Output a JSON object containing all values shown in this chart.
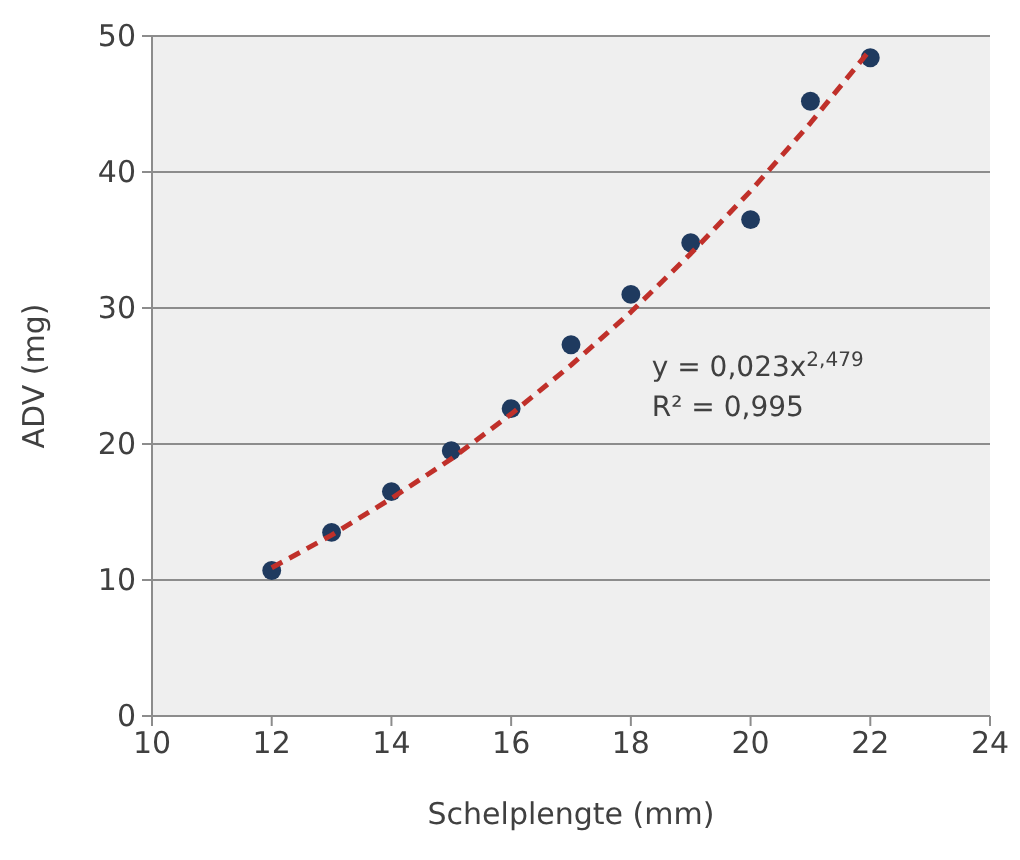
{
  "chart_data": {
    "type": "scatter",
    "xlabel": "Schelplengte (mm)",
    "ylabel": "ADV (mg)",
    "xlim": [
      10,
      24
    ],
    "xticks": [
      10,
      12,
      14,
      16,
      18,
      20,
      22,
      24
    ],
    "ylim": [
      0,
      50
    ],
    "yticks": [
      0,
      10,
      20,
      30,
      40,
      50
    ],
    "grid": "y",
    "series": [
      {
        "color": "#1f3a5f",
        "marker": "circle",
        "x": [
          12,
          13,
          14,
          15,
          16,
          17,
          18,
          19,
          20,
          21,
          22
        ],
        "values": [
          10.7,
          13.5,
          16.5,
          19.5,
          22.6,
          27.3,
          31,
          34.8,
          36.5,
          45.2,
          48.4
        ]
      },
      {
        "type": "line",
        "color": "#c0302a",
        "line_style": "dashed",
        "marker": "none",
        "x": [
          12,
          13,
          14,
          15,
          16,
          17,
          18,
          19,
          20,
          21,
          22
        ],
        "values": [
          10.9,
          13.3,
          16,
          18.9,
          22.2,
          25.8,
          29.7,
          34,
          38.6,
          43.6,
          49
        ]
      }
    ],
    "annotations": [
      "y = 0,023x$^{2,479}$",
      "R² = 0,995"
    ]
  }
}
